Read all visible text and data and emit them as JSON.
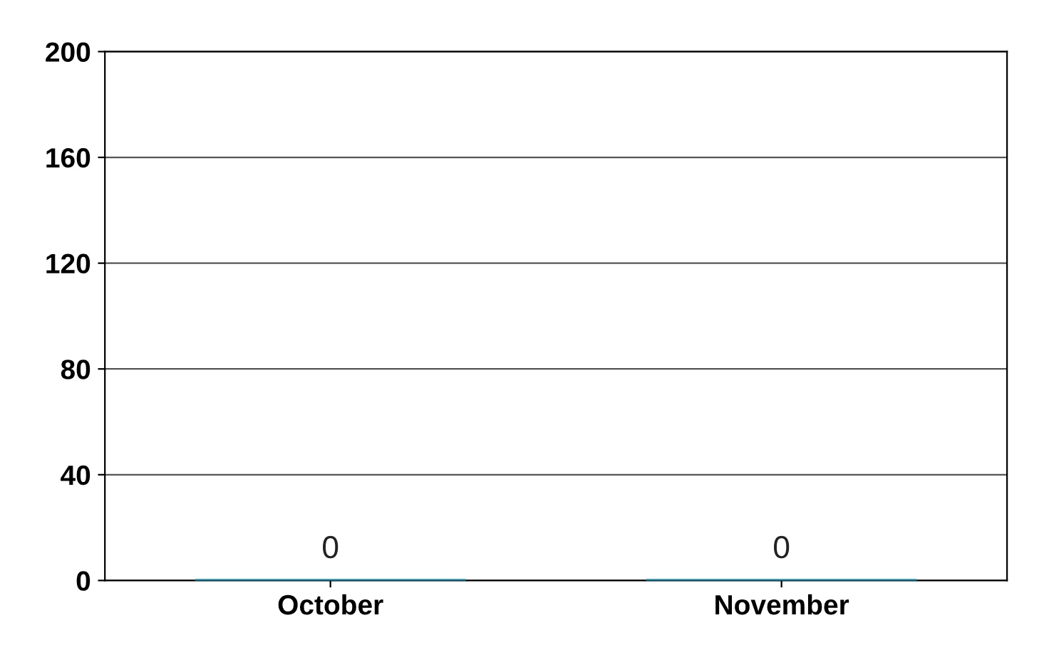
{
  "chart_data": {
    "type": "bar",
    "categories": [
      "October",
      "November"
    ],
    "values": [
      0,
      0
    ],
    "color": "#1b8db3",
    "ylim": [
      0,
      200
    ],
    "yticks": [
      0,
      40,
      80,
      120,
      160,
      200
    ],
    "grid": "y",
    "data_labels": true
  }
}
